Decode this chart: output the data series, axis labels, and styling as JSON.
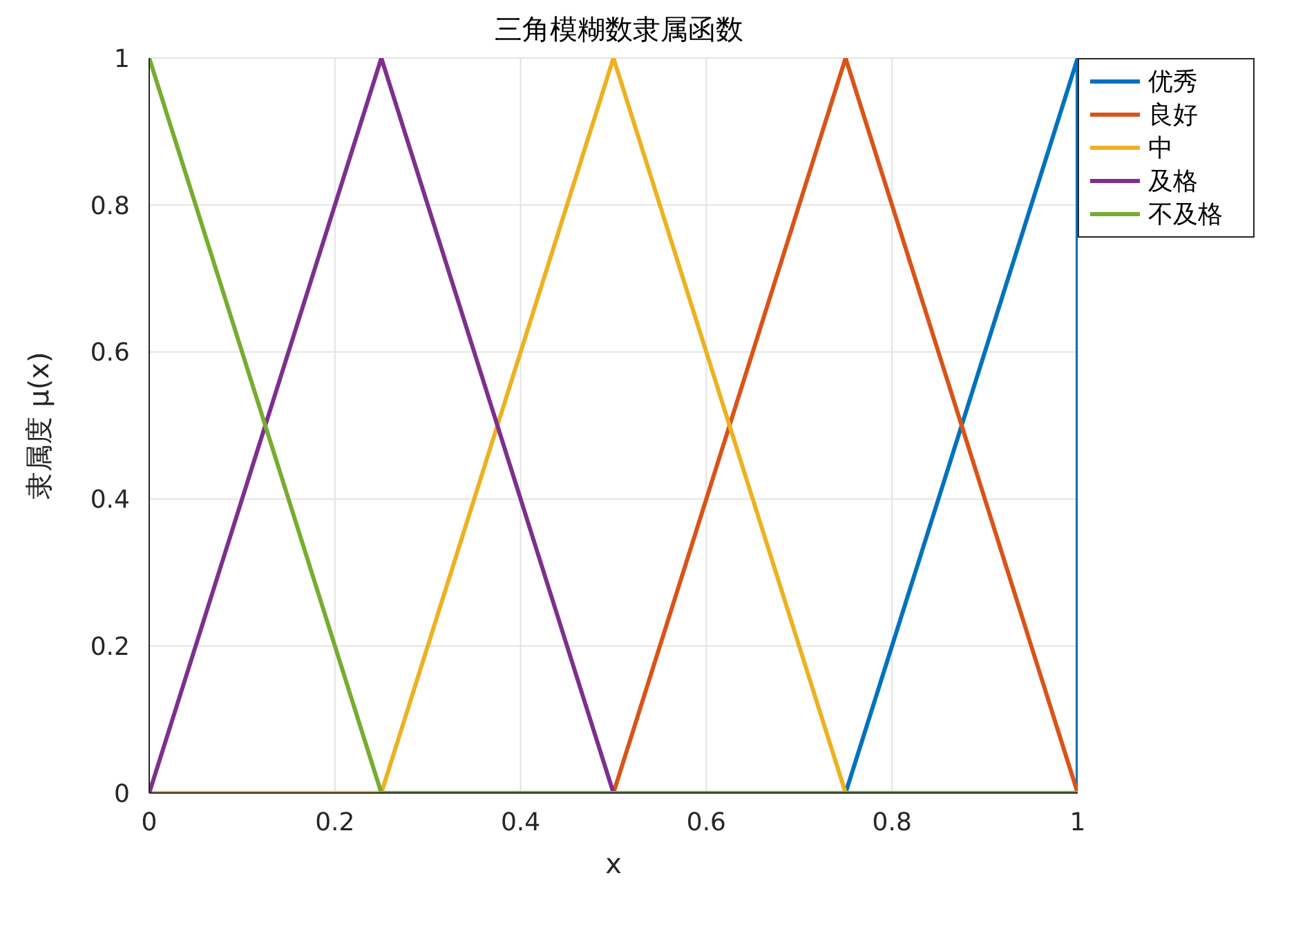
{
  "chart_data": {
    "type": "line",
    "title": "三角模糊数隶属函数",
    "xlabel": "x",
    "ylabel": "隶属度 μ(x)",
    "xlim": [
      0,
      1
    ],
    "xticks": [
      0,
      0.2,
      0.4,
      0.6,
      0.8,
      1
    ],
    "ylim": [
      0,
      1
    ],
    "yticks": [
      0,
      0.2,
      0.4,
      0.6,
      0.8,
      1
    ],
    "grid": true,
    "legend": "top right",
    "marker": "none",
    "series": [
      {
        "name": "优秀",
        "color": "#0072bd",
        "x": [
          0,
          0.75,
          1,
          1
        ],
        "values": [
          0,
          0,
          1,
          0
        ]
      },
      {
        "name": "良好",
        "color": "#d95319",
        "x": [
          0,
          0.5,
          0.75,
          1
        ],
        "values": [
          0,
          0,
          1,
          0
        ]
      },
      {
        "name": "中",
        "color": "#edb120",
        "x": [
          0,
          0.25,
          0.5,
          0.75,
          1
        ],
        "values": [
          0,
          0,
          1,
          0,
          0
        ]
      },
      {
        "name": "及格",
        "color": "#7e2f8e",
        "x": [
          0,
          0.25,
          0.5,
          1
        ],
        "values": [
          0,
          1,
          0,
          0
        ]
      },
      {
        "name": "不及格",
        "color": "#77ac30",
        "x": [
          0,
          0.25,
          1
        ],
        "values": [
          1,
          0,
          0
        ]
      }
    ]
  }
}
